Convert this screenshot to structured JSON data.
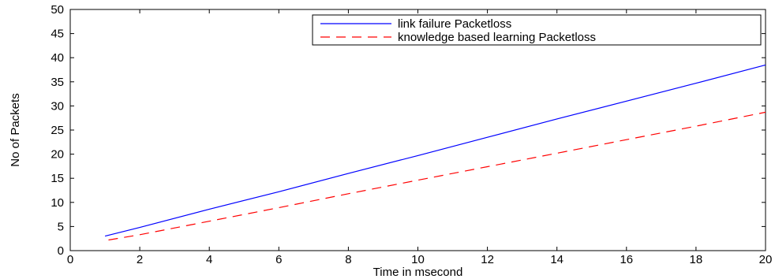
{
  "chart_data": {
    "type": "line",
    "title": "",
    "xlabel": "Time in msecond",
    "ylabel": "No of Packets",
    "xlim": [
      0,
      20
    ],
    "ylim": [
      0,
      50
    ],
    "xticks": [
      0,
      2,
      4,
      6,
      8,
      10,
      12,
      14,
      16,
      18,
      20
    ],
    "yticks": [
      0,
      5,
      10,
      15,
      20,
      25,
      30,
      35,
      40,
      45,
      50
    ],
    "grid": false,
    "legend_position": "top-right",
    "series": [
      {
        "name": "link failure Packetloss",
        "color": "#0000ff",
        "style": "solid",
        "x": [
          1,
          2,
          4,
          6,
          8,
          10,
          12,
          14,
          16,
          18,
          20
        ],
        "y": [
          3,
          4.8,
          8.6,
          12.2,
          16.0,
          19.7,
          23.5,
          27.3,
          31.0,
          34.7,
          38.5
        ]
      },
      {
        "name": "knowledge based learning Packetloss",
        "color": "#ff0000",
        "style": "dashed",
        "x": [
          1.1,
          2,
          4,
          6,
          8,
          10,
          12,
          14,
          16,
          18,
          20
        ],
        "y": [
          2.2,
          3.3,
          6.1,
          8.9,
          11.8,
          14.6,
          17.4,
          20.2,
          23.0,
          25.8,
          28.7
        ]
      }
    ]
  }
}
